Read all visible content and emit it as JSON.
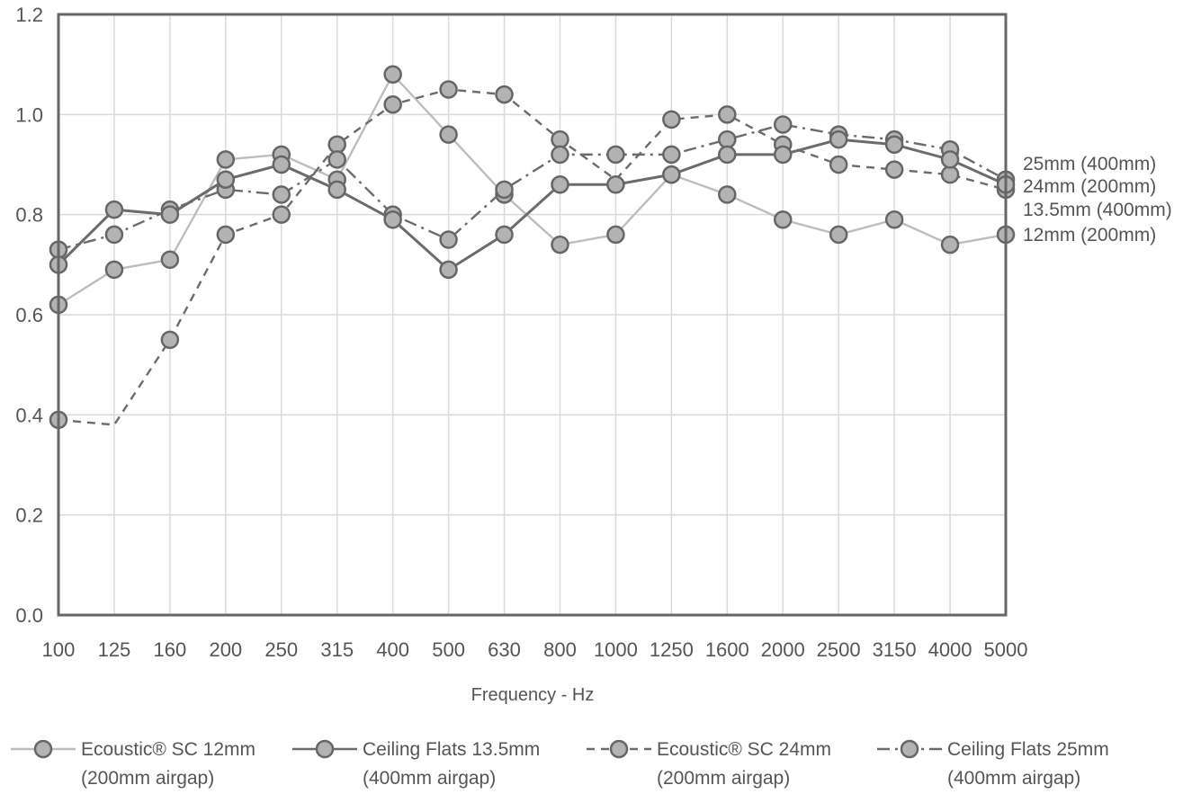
{
  "chart_data": {
    "type": "line",
    "title": "",
    "xlabel": "Frequency - Hz",
    "ylabel": "",
    "ylim": [
      0,
      1.2
    ],
    "yticks": [
      "0.0",
      "0.2",
      "0.4",
      "0.6",
      "0.8",
      "1.0",
      "1.2"
    ],
    "grid": true,
    "categories": [
      "100",
      "125",
      "160",
      "200",
      "250",
      "315",
      "400",
      "500",
      "630",
      "800",
      "1000",
      "1250",
      "1600",
      "2000",
      "2500",
      "3150",
      "4000",
      "5000"
    ],
    "series": [
      {
        "legend_line1": "Ecoustic® SC 12mm",
        "legend_line2": "(200mm airgap)",
        "end_label": "12mm (200mm)",
        "style": "solid",
        "color": "#bdbdbd",
        "values": [
          0.62,
          0.69,
          0.71,
          0.91,
          0.92,
          0.87,
          1.08,
          0.96,
          0.84,
          0.74,
          0.76,
          0.88,
          0.84,
          0.79,
          0.76,
          0.79,
          0.74,
          0.76
        ],
        "markers": [
          true,
          true,
          true,
          true,
          true,
          true,
          true,
          true,
          true,
          true,
          true,
          true,
          true,
          true,
          true,
          true,
          true,
          true
        ]
      },
      {
        "legend_line1": "Ceiling Flats 13.5mm",
        "legend_line2": "(400mm airgap)",
        "end_label": "13.5mm (400mm)",
        "style": "solid",
        "color": "#6b6b6b",
        "values": [
          0.7,
          0.81,
          0.8,
          0.87,
          0.9,
          0.85,
          0.79,
          0.69,
          0.76,
          0.86,
          0.86,
          0.88,
          0.92,
          0.92,
          0.95,
          0.94,
          0.91,
          0.86
        ],
        "markers": [
          true,
          true,
          true,
          true,
          true,
          true,
          true,
          true,
          true,
          true,
          true,
          true,
          true,
          true,
          true,
          true,
          true,
          true
        ]
      },
      {
        "legend_line1": "Ecoustic® SC 24mm",
        "legend_line2": "(200mm airgap)",
        "end_label": "24mm (200mm)",
        "style": "dashed",
        "color": "#6b6b6b",
        "values": [
          0.39,
          0.38,
          0.55,
          0.76,
          0.8,
          0.94,
          1.02,
          1.05,
          1.04,
          0.95,
          0.87,
          0.99,
          1.0,
          0.94,
          0.9,
          0.89,
          0.88,
          0.85
        ],
        "markers": [
          true,
          false,
          true,
          true,
          true,
          true,
          true,
          true,
          true,
          true,
          false,
          true,
          true,
          true,
          true,
          true,
          true,
          true
        ]
      },
      {
        "legend_line1": "Ceiling Flats 25mm",
        "legend_line2": "(400mm airgap)",
        "end_label": "25mm (400mm)",
        "style": "dashdot",
        "color": "#6b6b6b",
        "values": [
          0.73,
          0.76,
          0.81,
          0.85,
          0.84,
          0.91,
          0.8,
          0.75,
          0.85,
          0.92,
          0.92,
          0.92,
          0.95,
          0.98,
          0.96,
          0.95,
          0.93,
          0.87
        ],
        "markers": [
          true,
          true,
          true,
          true,
          true,
          true,
          true,
          true,
          true,
          true,
          true,
          true,
          true,
          true,
          true,
          true,
          true,
          true
        ]
      }
    ]
  }
}
